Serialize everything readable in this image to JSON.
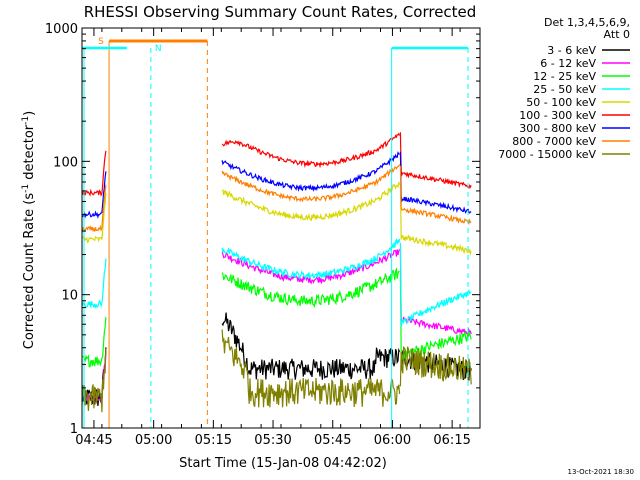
{
  "chart_data": {
    "type": "line",
    "title": "RHESSI Observing Summary Count Rates, Corrected",
    "xlabel": "Start Time (15-Jan-08 04:42:02)",
    "ylabel_main": "Corrected Count Rate (s",
    "ylabel_sup1": "-1",
    "ylabel_mid": " detector",
    "ylabel_sup2": "-1",
    "ylabel_end": ")",
    "yscale": "log",
    "ylim": [
      1,
      1000
    ],
    "xlim_minutes": [
      0,
      100
    ],
    "x_ticks": [
      {
        "label": "04:45",
        "minute": 3
      },
      {
        "label": "05:00",
        "minute": 18
      },
      {
        "label": "05:15",
        "minute": 33
      },
      {
        "label": "05:30",
        "minute": 48
      },
      {
        "label": "05:45",
        "minute": 63
      },
      {
        "label": "06:00",
        "minute": 78
      },
      {
        "label": "06:15",
        "minute": 93
      }
    ],
    "y_ticks": [
      {
        "label": "1",
        "value": 1
      },
      {
        "label": "10",
        "value": 10
      },
      {
        "label": "100",
        "value": 100
      },
      {
        "label": "1000",
        "value": 1000
      }
    ],
    "legend": {
      "header1": "Det 1,3,4,5,6,9,",
      "header2": "Att 0",
      "placement": "top-right"
    },
    "series": [
      {
        "name": "3 - 6 keV",
        "color": "#000000"
      },
      {
        "name": "6 - 12 keV",
        "color": "#ff00ff"
      },
      {
        "name": "12 - 25 keV",
        "color": "#00ff00"
      },
      {
        "name": "25 - 50 keV",
        "color": "#00ffff"
      },
      {
        "name": "50 - 100 keV",
        "color": "#d8d800"
      },
      {
        "name": "100 - 300 keV",
        "color": "#ff0000"
      },
      {
        "name": "300 - 800 keV",
        "color": "#0000ff"
      },
      {
        "name": "800 - 7000 keV",
        "color": "#ff8000"
      },
      {
        "name": "7000 - 15000 keV",
        "color": "#808000"
      }
    ],
    "annotations": {
      "saa_label": "S",
      "night_label": "N",
      "saa_color": "#ff8000",
      "night_color": "#00ffff"
    },
    "footer_date": "13-Oct-2021 18:30"
  }
}
